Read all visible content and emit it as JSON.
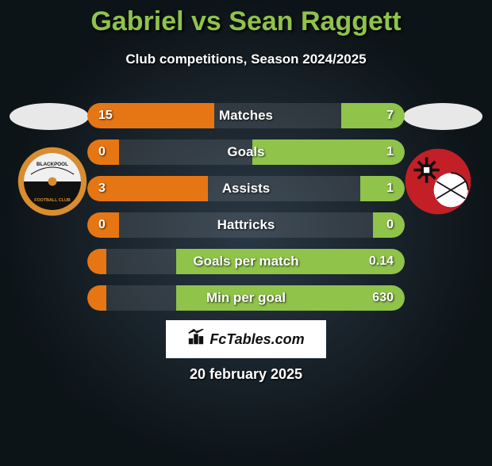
{
  "title_color": "#8FC34A",
  "title": "Gabriel vs Sean Raggett",
  "subtitle": "Club competitions, Season 2024/2025",
  "date": "20 february 2025",
  "brand_text": "FcTables.com",
  "left_bar_color": "#e67613",
  "right_bar_color": "#8FC34A",
  "left_player_avatar_bg": "#e8e8e8",
  "right_player_avatar_bg": "#e8e8e8",
  "left_club": {
    "name": "Blackpool Football Club",
    "badge_colors": {
      "outer": "#d98d2e",
      "inner_top": "#f0f0f0",
      "inner_bottom": "#111111",
      "text": "#111111"
    }
  },
  "right_club": {
    "name": "Rotherham",
    "badge_colors": {
      "circle": "#c31f27",
      "ball": "#ffffff",
      "mills": "#111111"
    }
  },
  "rows": [
    {
      "label": "Matches",
      "left": "15",
      "right": "7",
      "lpct": 40,
      "rpct": 20
    },
    {
      "label": "Goals",
      "left": "0",
      "right": "1",
      "lpct": 10,
      "rpct": 48
    },
    {
      "label": "Assists",
      "left": "3",
      "right": "1",
      "lpct": 38,
      "rpct": 14
    },
    {
      "label": "Hattricks",
      "left": "0",
      "right": "0",
      "lpct": 10,
      "rpct": 10
    },
    {
      "label": "Goals per match",
      "left": "",
      "right": "0.14",
      "lpct": 6,
      "rpct": 72
    },
    {
      "label": "Min per goal",
      "left": "",
      "right": "630",
      "lpct": 6,
      "rpct": 72
    }
  ]
}
